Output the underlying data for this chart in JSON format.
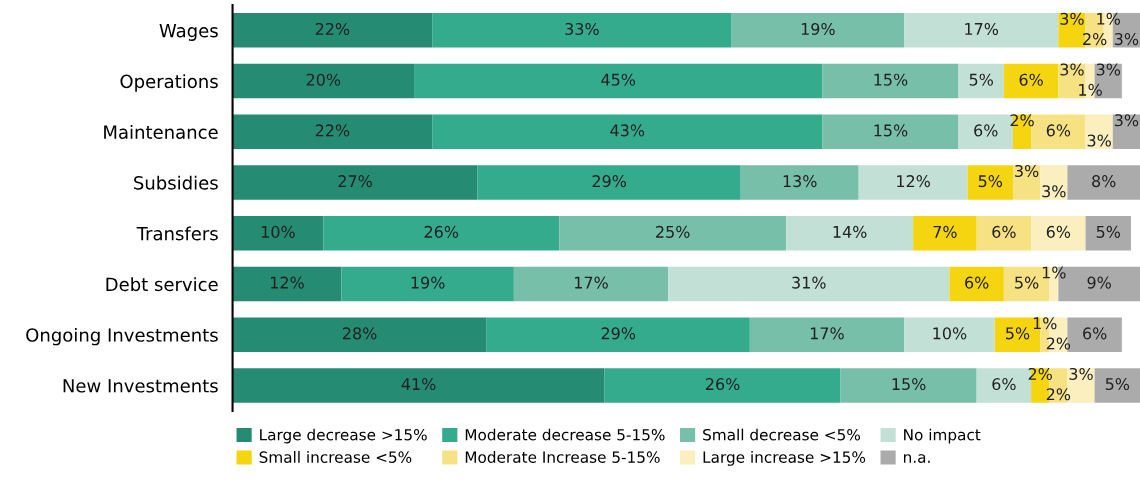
{
  "chart_data": {
    "type": "bar",
    "orientation": "horizontal",
    "stacked": true,
    "legend": "bottom",
    "grid": false,
    "categories": [
      "Wages",
      "Operations",
      "Maintenance",
      "Subsidies",
      "Transfers",
      "Debt service",
      "Ongoing Investments",
      "New Investments"
    ],
    "series": [
      {
        "name": "Large decrease >15%",
        "color": "#258b73",
        "values": [
          22,
          20,
          22,
          27,
          10,
          12,
          28,
          41
        ],
        "value_labels": [
          "22%",
          "20%",
          "22%",
          "27%",
          "10%",
          "12%",
          "28%",
          "41%"
        ]
      },
      {
        "name": "Moderate decrease 5-15%",
        "color": "#35ab8e",
        "values": [
          33,
          45,
          43,
          29,
          26,
          19,
          29,
          26
        ],
        "value_labels": [
          "33%",
          "45%",
          "43%",
          "29%",
          "26%",
          "19%",
          "29%",
          "26%"
        ]
      },
      {
        "name": "Small decrease <5%",
        "color": "#78bfaa",
        "values": [
          19,
          15,
          15,
          13,
          25,
          17,
          17,
          15
        ],
        "value_labels": [
          "19%",
          "15%",
          "15%",
          "13%",
          "25%",
          "17%",
          "17%",
          "15%"
        ]
      },
      {
        "name": "No impact",
        "color": "#c2e0d6",
        "values": [
          17,
          5,
          6,
          12,
          14,
          31,
          10,
          6
        ],
        "value_labels": [
          "17%",
          "5%",
          "6%",
          "12%",
          "14%",
          "31%",
          "10%",
          "6%"
        ]
      },
      {
        "name": "Small increase <5%",
        "color": "#f5d410",
        "values": [
          3,
          6,
          2,
          5,
          7,
          6,
          5,
          2
        ],
        "value_labels": [
          "3%",
          "6%",
          "2%",
          "5%",
          "7%",
          "6%",
          "5%",
          "2%"
        ]
      },
      {
        "name": "Moderate Increase 5-15%",
        "color": "#f7e283",
        "values": [
          2,
          3,
          6,
          3,
          6,
          5,
          1,
          2
        ],
        "value_labels": [
          "2%",
          "3%",
          "6%",
          "3%",
          "6%",
          "5%",
          "1%",
          "2%"
        ]
      },
      {
        "name": "Large increase >15%",
        "color": "#fbeebf",
        "values": [
          1,
          1,
          3,
          3,
          6,
          1,
          2,
          3
        ],
        "value_labels": [
          "1%",
          "1%",
          "3%",
          "3%",
          "6%",
          "1%",
          "2%",
          "3%"
        ]
      },
      {
        "name": "n.a.",
        "color": "#ababab",
        "values": [
          3,
          3,
          3,
          8,
          5,
          9,
          6,
          5
        ],
        "value_labels": [
          "3%",
          "3%",
          "3%",
          "8%",
          "5%",
          "9%",
          "6%",
          "5%"
        ]
      }
    ]
  }
}
